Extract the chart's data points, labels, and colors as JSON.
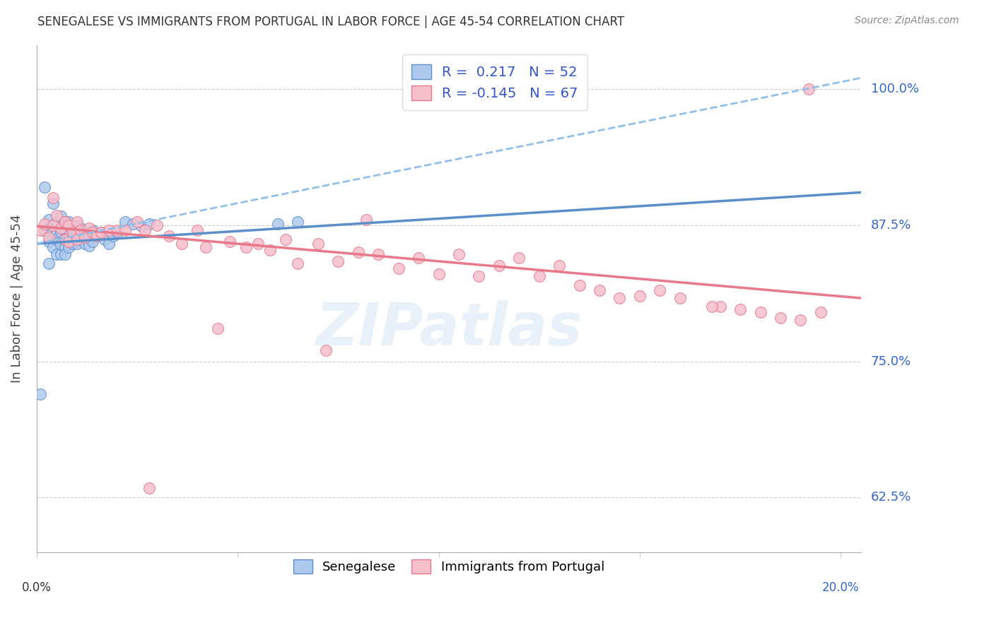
{
  "title": "SENEGALESE VS IMMIGRANTS FROM PORTUGAL IN LABOR FORCE | AGE 45-54 CORRELATION CHART",
  "source": "Source: ZipAtlas.com",
  "ylabel": "In Labor Force | Age 45-54",
  "ytick_labels": [
    "62.5%",
    "75.0%",
    "87.5%",
    "100.0%"
  ],
  "ytick_values": [
    0.625,
    0.75,
    0.875,
    1.0
  ],
  "xlim": [
    0.0,
    0.205
  ],
  "ylim": [
    0.575,
    1.04
  ],
  "legend_blue_R": "0.217",
  "legend_blue_N": "52",
  "legend_pink_R": "-0.145",
  "legend_pink_N": "67",
  "blue_color": "#aec9ee",
  "blue_edge_color": "#5b8fc9",
  "pink_color": "#f5bfcc",
  "pink_edge_color": "#e8788a",
  "dashed_line_color": "#92bfe8",
  "watermark": "ZIPatlas",
  "blue_scatter_x": [
    0.001,
    0.002,
    0.002,
    0.003,
    0.003,
    0.003,
    0.004,
    0.004,
    0.004,
    0.005,
    0.005,
    0.005,
    0.005,
    0.006,
    0.006,
    0.006,
    0.006,
    0.007,
    0.007,
    0.007,
    0.007,
    0.007,
    0.008,
    0.008,
    0.008,
    0.008,
    0.009,
    0.009,
    0.009,
    0.01,
    0.01,
    0.01,
    0.011,
    0.011,
    0.012,
    0.012,
    0.013,
    0.013,
    0.014,
    0.014,
    0.015,
    0.016,
    0.017,
    0.018,
    0.019,
    0.02,
    0.022,
    0.024,
    0.026,
    0.028,
    0.06,
    0.065
  ],
  "blue_scatter_y": [
    0.72,
    0.91,
    0.87,
    0.88,
    0.86,
    0.84,
    0.895,
    0.87,
    0.855,
    0.878,
    0.862,
    0.848,
    0.868,
    0.883,
    0.868,
    0.857,
    0.848,
    0.878,
    0.87,
    0.862,
    0.855,
    0.848,
    0.878,
    0.87,
    0.862,
    0.855,
    0.874,
    0.865,
    0.858,
    0.875,
    0.868,
    0.858,
    0.872,
    0.862,
    0.868,
    0.858,
    0.866,
    0.856,
    0.87,
    0.86,
    0.865,
    0.868,
    0.862,
    0.858,
    0.865,
    0.868,
    0.878,
    0.876,
    0.874,
    0.876,
    0.876,
    0.878
  ],
  "pink_scatter_x": [
    0.001,
    0.002,
    0.003,
    0.004,
    0.004,
    0.005,
    0.006,
    0.007,
    0.007,
    0.008,
    0.008,
    0.009,
    0.01,
    0.01,
    0.011,
    0.012,
    0.013,
    0.014,
    0.015,
    0.016,
    0.018,
    0.02,
    0.022,
    0.025,
    0.027,
    0.03,
    0.033,
    0.036,
    0.04,
    0.042,
    0.048,
    0.052,
    0.055,
    0.058,
    0.062,
    0.065,
    0.07,
    0.075,
    0.08,
    0.082,
    0.085,
    0.09,
    0.095,
    0.1,
    0.105,
    0.11,
    0.115,
    0.12,
    0.125,
    0.13,
    0.135,
    0.14,
    0.155,
    0.16,
    0.17,
    0.175,
    0.18,
    0.185,
    0.19,
    0.192,
    0.195,
    0.15,
    0.145,
    0.168,
    0.072,
    0.028,
    0.045
  ],
  "pink_scatter_y": [
    0.87,
    0.876,
    0.864,
    0.9,
    0.875,
    0.884,
    0.872,
    0.878,
    0.862,
    0.875,
    0.86,
    0.868,
    0.878,
    0.862,
    0.87,
    0.864,
    0.872,
    0.868,
    0.865,
    0.868,
    0.87,
    0.87,
    0.87,
    0.878,
    0.87,
    0.875,
    0.865,
    0.858,
    0.87,
    0.855,
    0.86,
    0.855,
    0.858,
    0.852,
    0.862,
    0.84,
    0.858,
    0.842,
    0.85,
    0.88,
    0.848,
    0.835,
    0.845,
    0.83,
    0.848,
    0.828,
    0.838,
    0.845,
    0.828,
    0.838,
    0.82,
    0.815,
    0.815,
    0.808,
    0.8,
    0.798,
    0.795,
    0.79,
    0.788,
    1.0,
    0.795,
    0.81,
    0.808,
    0.8,
    0.76,
    0.634,
    0.78
  ],
  "blue_trend_x": [
    0.0,
    0.205
  ],
  "blue_trend_y": [
    0.858,
    0.905
  ],
  "pink_trend_x": [
    0.0,
    0.205
  ],
  "pink_trend_y": [
    0.874,
    0.808
  ],
  "dashed_trend_x": [
    0.0,
    0.205
  ],
  "dashed_trend_y": [
    0.858,
    1.01
  ]
}
